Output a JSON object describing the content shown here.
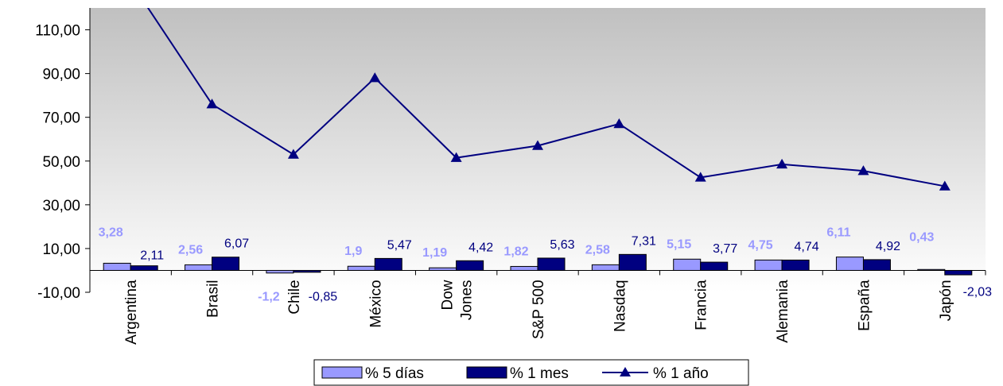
{
  "chart_data": {
    "type": "bar",
    "title": "",
    "xlabel": "",
    "ylabel": "",
    "ylim": [
      -10,
      120
    ],
    "yticks": [
      "110,00",
      "90,00",
      "70,00",
      "50,00",
      "30,00",
      "10,00",
      "-10,00"
    ],
    "ytick_values": [
      110,
      90,
      70,
      50,
      30,
      10,
      -10
    ],
    "categories": [
      "Argentina",
      "Brasil",
      "Chile",
      "México",
      "Dow Jones",
      "S&P 500",
      "Nasdaq",
      "Francia",
      "Alemania",
      "España",
      "Japón"
    ],
    "category_lines": [
      [
        "Argentina"
      ],
      [
        "Brasil"
      ],
      [
        "Chile"
      ],
      [
        "México"
      ],
      [
        "Dow",
        "Jones"
      ],
      [
        "S&P 500"
      ],
      [
        "Nasdaq"
      ],
      [
        "Francia"
      ],
      [
        "Alemania"
      ],
      [
        "España"
      ],
      [
        "Japón"
      ]
    ],
    "series": [
      {
        "name": "% 5 días",
        "type": "bar",
        "color": "#9999ff",
        "values": [
          3.28,
          2.56,
          -1.2,
          1.9,
          1.19,
          1.82,
          2.58,
          5.15,
          4.75,
          6.11,
          0.43
        ],
        "labels": [
          "3,28",
          "2,56",
          "-1,2",
          "1,9",
          "1,19",
          "1,82",
          "2,58",
          "5,15",
          "4,75",
          "6,11",
          "0,43"
        ]
      },
      {
        "name": "% 1 mes",
        "type": "bar",
        "color": "#000080",
        "values": [
          2.11,
          6.07,
          -0.85,
          5.47,
          4.42,
          5.63,
          7.31,
          3.77,
          4.74,
          4.92,
          -2.03
        ],
        "labels": [
          "2,11",
          "6,07",
          "-0,85",
          "5,47",
          "4,42",
          "5,63",
          "7,31",
          "3,77",
          "4,74",
          "4,92",
          "-2,03"
        ]
      },
      {
        "name": "% 1 año",
        "type": "line",
        "marker": "triangle",
        "color": "#000080",
        "values": [
          132,
          76,
          53,
          88,
          51.5,
          57,
          67,
          42.5,
          48.5,
          45.5,
          38.5
        ]
      }
    ],
    "legend": {
      "placement": "bottom-center",
      "items": [
        "% 5 días",
        "% 1 mes",
        "% 1 año"
      ]
    },
    "background_gradient": [
      "#c0c0c0",
      "#ffffff"
    ],
    "grid": false
  }
}
